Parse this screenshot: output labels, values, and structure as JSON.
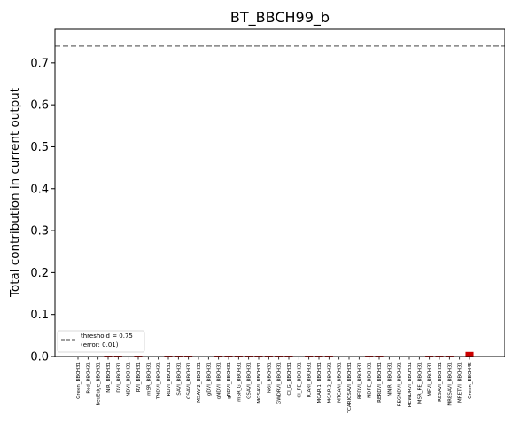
{
  "chart_data": {
    "type": "bar",
    "title": "BT_BBCH99_b",
    "xlabel": "",
    "ylabel": "Total contribution in current output",
    "ylim": [
      0,
      0.78
    ],
    "yticks": [
      "0.0",
      "0.1",
      "0.2",
      "0.3",
      "0.4",
      "0.5",
      "0.6",
      "0.7"
    ],
    "grid": false,
    "legend_position": "lower-left",
    "bar_color": "#cc0000",
    "threshold": {
      "value": 0.74,
      "color": "#808080",
      "legend_line1": "threshold = 0.75",
      "legend_line2": "(error: 0.01)"
    },
    "categories": [
      "Green_BBCH31",
      "Red_BBCH31",
      "RedEdge_BBCH31",
      "NIR_BBCH31",
      "DVI_BBCH31",
      "NDVI_BBCH31",
      "RVI_BBCH31",
      "mSR_BBCH31",
      "TNDVI_BBCH31",
      "RDVI_BBCH31",
      "SAVI_BBCH31",
      "OSAVI_BBCH31",
      "MSAVI2_BBCH31",
      "gDVI_BBCH31",
      "gNDVI_BBCH31",
      "gRDVI_BBCH31",
      "mSR_G_BBCH31",
      "GSAVI_BBCH31",
      "MGSAVI_BBCH31",
      "NGI_BBCH31",
      "GWDRVI_BBCH31",
      "CI_G_BBCH31",
      "CI_RE_BBCH31",
      "TCARI_BBCH31",
      "MCARI1_BBCH31",
      "MCARI2_BBCH31",
      "MTCARI_BBCH31",
      "TCARIOSAVI_BBCH31",
      "REDVI_BBCH31",
      "NDRE_BBCH31",
      "RERDVI_BBCH31",
      "NNIR_BBCH31",
      "REGNDVI_BBCH31",
      "REWDRVI_BBCH31",
      "MSR_RE_BBCH31",
      "MEVI_BBCH31",
      "RESAVI_BBCH31",
      "MRESAVI_BBCH31",
      "MRETVI_BBCH31",
      "Green_BBCH45"
    ],
    "values": [
      0.001,
      0.001,
      0.001,
      0.002,
      0.002,
      0.001,
      0.002,
      0.001,
      0.0005,
      0.002,
      0.002,
      0.002,
      0.001,
      0.001,
      0.002,
      0.002,
      0.002,
      0.002,
      0.002,
      0.002,
      0.002,
      0.002,
      0.001,
      0.002,
      0.002,
      0.002,
      0.001,
      0.001,
      0.001,
      0.002,
      0.002,
      0.001,
      0.001,
      0.001,
      0.001,
      0.002,
      0.002,
      0.002,
      0.001,
      0.011
    ]
  }
}
